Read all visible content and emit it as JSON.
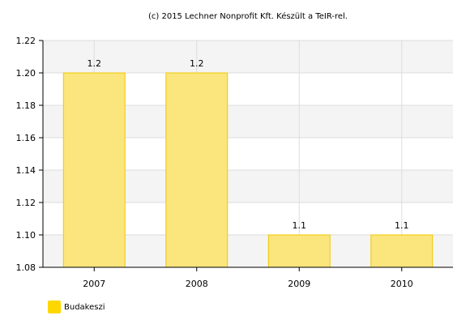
{
  "chart_data": {
    "type": "bar",
    "title": "(c) 2015 Lechner Nonprofit Kft. Készült a TeIR-rel.",
    "categories": [
      "2007",
      "2008",
      "2009",
      "2010"
    ],
    "series": [
      {
        "name": "Budakeszi",
        "values": [
          1.2,
          1.2,
          1.1,
          1.1
        ],
        "data_labels": [
          "1.2",
          "1.2",
          "1.1",
          "1.1"
        ],
        "color": "#ffd700"
      }
    ],
    "bar_draw_values": [
      1.2,
      1.2,
      1.1,
      1.1
    ],
    "ylim": [
      1.08,
      1.22
    ],
    "yticks": [
      "1.08",
      "1.10",
      "1.12",
      "1.14",
      "1.16",
      "1.18",
      "1.20",
      "1.22"
    ],
    "xlabel": "",
    "ylabel": "",
    "grid": true,
    "legend_position": "bottom-left"
  },
  "colors": {
    "bar_fill": "#fbe57d",
    "bar_stroke": "#f0c800",
    "band": "#f4f4f4",
    "axis": "#000000",
    "grid": "#dddddd"
  }
}
